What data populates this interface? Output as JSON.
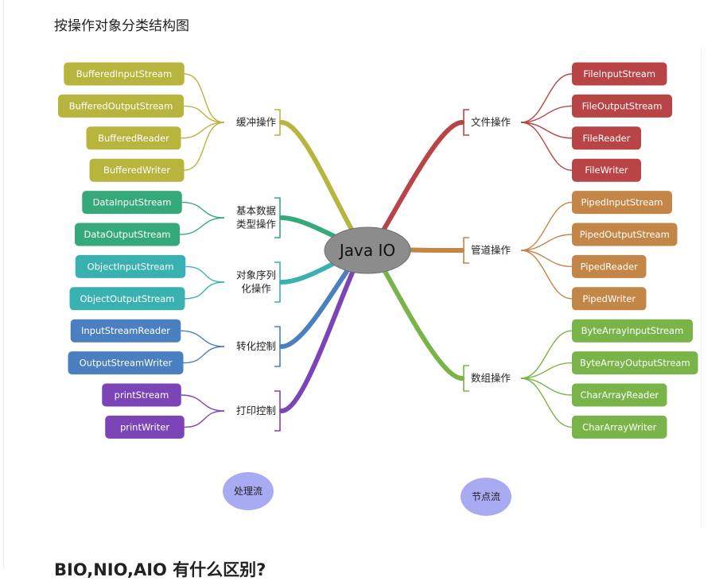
{
  "section_title": "按操作对象分类结构图",
  "bottom_heading": "BIO,NIO,AIO 有什么区别?",
  "diagram": {
    "center": "Java IO",
    "left_groups": [
      {
        "label": [
          "缓冲操作"
        ],
        "color": "#b8b53f",
        "items": [
          "BufferedInputStream",
          "BufferedOutputStream",
          "BufferedReader",
          "BufferedWriter"
        ]
      },
      {
        "label": [
          "基本数据",
          "类型操作"
        ],
        "color": "#36a97a",
        "items": [
          "DataInputStream",
          "DataOutputStream"
        ]
      },
      {
        "label": [
          "对象序列",
          "化操作"
        ],
        "color": "#3ab1b1",
        "items": [
          "ObjectInputStream",
          "ObjectOutputStream"
        ]
      },
      {
        "label": [
          "转化控制"
        ],
        "color": "#4a7fc0",
        "items": [
          "InputStreamReader",
          "OutputStreamWriter"
        ]
      },
      {
        "label": [
          "打印控制"
        ],
        "color": "#7b45b8",
        "items": [
          "printStream",
          "printWriter"
        ]
      }
    ],
    "right_groups": [
      {
        "label": [
          "文件操作"
        ],
        "color": "#b84445",
        "items": [
          "FileInputStream",
          "FileOutputStream",
          "FileReader",
          "FileWriter"
        ]
      },
      {
        "label": [
          "管道操作"
        ],
        "color": "#c48646",
        "items": [
          "PipedInputStream",
          "PipedOutputStream",
          "PipedReader",
          "PipedWriter"
        ]
      },
      {
        "label": [
          "数组操作"
        ],
        "color": "#78b448",
        "items": [
          "ByteArrayInputStream",
          "ByteArrayOutputStream",
          "CharArrayReader",
          "CharArrayWriter"
        ]
      }
    ],
    "legend": [
      "处理流",
      "节点流"
    ]
  }
}
